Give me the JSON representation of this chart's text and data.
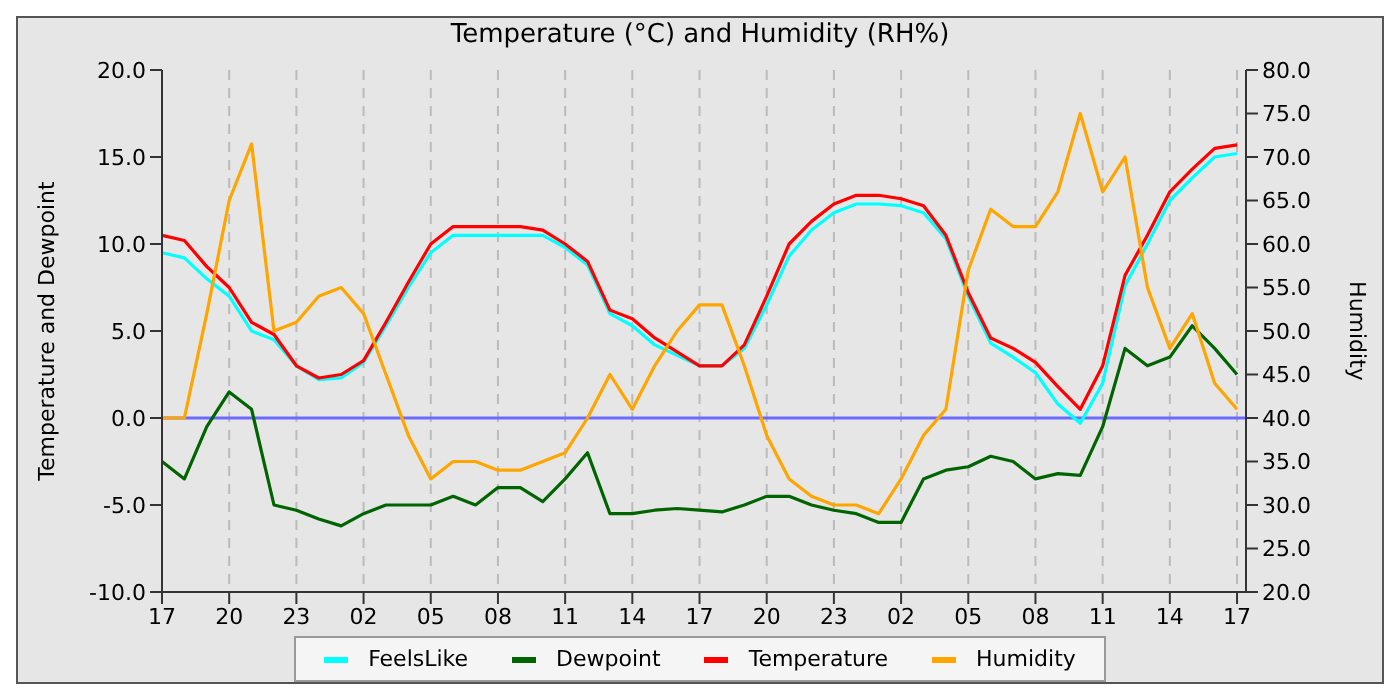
{
  "chart_data": {
    "type": "line",
    "title": "Temperature (°C) and Humidity (RH%)",
    "ylabel": "Temperature and Dewpoint",
    "y2label": "Humidity",
    "categories": [
      "17",
      null,
      null,
      "20",
      null,
      null,
      "23",
      null,
      null,
      "02",
      null,
      null,
      "05",
      null,
      null,
      "08",
      null,
      null,
      "11",
      null,
      null,
      "14",
      null,
      null,
      "17",
      null,
      null,
      "20",
      null,
      null,
      "23",
      null,
      null,
      "02",
      null,
      null,
      "05",
      null,
      null,
      "08",
      null,
      null,
      "11",
      null,
      null,
      "14",
      null,
      null,
      "17"
    ],
    "ylim": [
      -10,
      20
    ],
    "yticks": [
      {
        "value": -10,
        "label": "-10.0"
      },
      {
        "value": -5,
        "label": "-5.0"
      },
      {
        "value": 0,
        "label": "0.0"
      },
      {
        "value": 5,
        "label": "5.0"
      },
      {
        "value": 10,
        "label": "10.0"
      },
      {
        "value": 15,
        "label": "15.0"
      },
      {
        "value": 20,
        "label": "20.0"
      }
    ],
    "y2lim": [
      20,
      80
    ],
    "y2ticks": [
      {
        "value": 20,
        "label": "20.0"
      },
      {
        "value": 25,
        "label": "25.0"
      },
      {
        "value": 30,
        "label": "30.0"
      },
      {
        "value": 35,
        "label": "35.0"
      },
      {
        "value": 40,
        "label": "40.0"
      },
      {
        "value": 45,
        "label": "45.0"
      },
      {
        "value": 50,
        "label": "50.0"
      },
      {
        "value": 55,
        "label": "55.0"
      },
      {
        "value": 60,
        "label": "60.0"
      },
      {
        "value": 65,
        "label": "65.0"
      },
      {
        "value": 70,
        "label": "70.0"
      },
      {
        "value": 75,
        "label": "75.0"
      },
      {
        "value": 80,
        "label": "80.0"
      }
    ],
    "grid": true,
    "legend": "bottom",
    "marker": "none",
    "line_style": "solid",
    "ref_lines": [
      {
        "axis": "y",
        "value": 0,
        "color": "#6a6aff"
      }
    ],
    "series": [
      {
        "name": "FeelsLike",
        "color": "#00ffff",
        "values": [
          9.5,
          9.2,
          8,
          7,
          5,
          4.5,
          3,
          2.2,
          2.3,
          3.2,
          5.3,
          7.5,
          9.5,
          10.5,
          10.5,
          10.5,
          10.5,
          10.5,
          9.8,
          8.8,
          6,
          5.3,
          4.2,
          3.6,
          3,
          3,
          4,
          6.5,
          9.3,
          10.8,
          11.8,
          12.3,
          12.3,
          12.2,
          11.8,
          10.3,
          7,
          4.3,
          3.5,
          2.6,
          0.8,
          -0.3,
          2,
          7.6,
          10,
          12.5,
          13.8,
          15,
          15.2
        ]
      },
      {
        "name": "Dewpoint",
        "color": "#006400",
        "values": [
          -2.5,
          -3.5,
          -0.5,
          1.5,
          0.5,
          -5,
          -5.3,
          -5.8,
          -6.2,
          -5.5,
          -5,
          -5,
          -5,
          -4.5,
          -5,
          -4,
          -4,
          -4.8,
          -3.5,
          -2,
          -5.5,
          -5.5,
          -5.3,
          -5.2,
          -5.3,
          -5.4,
          -5,
          -4.5,
          -4.5,
          -5,
          -5.3,
          -5.5,
          -6,
          -6,
          -3.5,
          -3,
          -2.8,
          -2.2,
          -2.5,
          -3.5,
          -3.2,
          -3.3,
          -0.5,
          4,
          3,
          3.5,
          5.3,
          4,
          2.5
        ]
      },
      {
        "name": "Temperature",
        "color": "#ff0000",
        "values": [
          10.5,
          10.2,
          8.7,
          7.5,
          5.5,
          4.8,
          3,
          2.3,
          2.5,
          3.3,
          5.5,
          7.8,
          10,
          11,
          11,
          11,
          11,
          10.8,
          10,
          9,
          6.2,
          5.7,
          4.6,
          3.8,
          3,
          3,
          4.2,
          7,
          10,
          11.3,
          12.3,
          12.8,
          12.8,
          12.6,
          12.2,
          10.5,
          7.2,
          4.6,
          4,
          3.2,
          1.8,
          0.5,
          3,
          8.2,
          10.5,
          13,
          14.3,
          15.5,
          15.7
        ]
      },
      {
        "name": "Humidity",
        "color": "#ffa500",
        "axis": "y2",
        "values": [
          40,
          40,
          52,
          65,
          71.5,
          50,
          51,
          54,
          55,
          52,
          45,
          38,
          33,
          35,
          35,
          34,
          34,
          35,
          36,
          40,
          45,
          41,
          46,
          50,
          53,
          53,
          46,
          38,
          33,
          31,
          30,
          30,
          29,
          33,
          38,
          41,
          57,
          64,
          62,
          62,
          66,
          75,
          66,
          70,
          55,
          48,
          52,
          44,
          41
        ]
      }
    ]
  }
}
